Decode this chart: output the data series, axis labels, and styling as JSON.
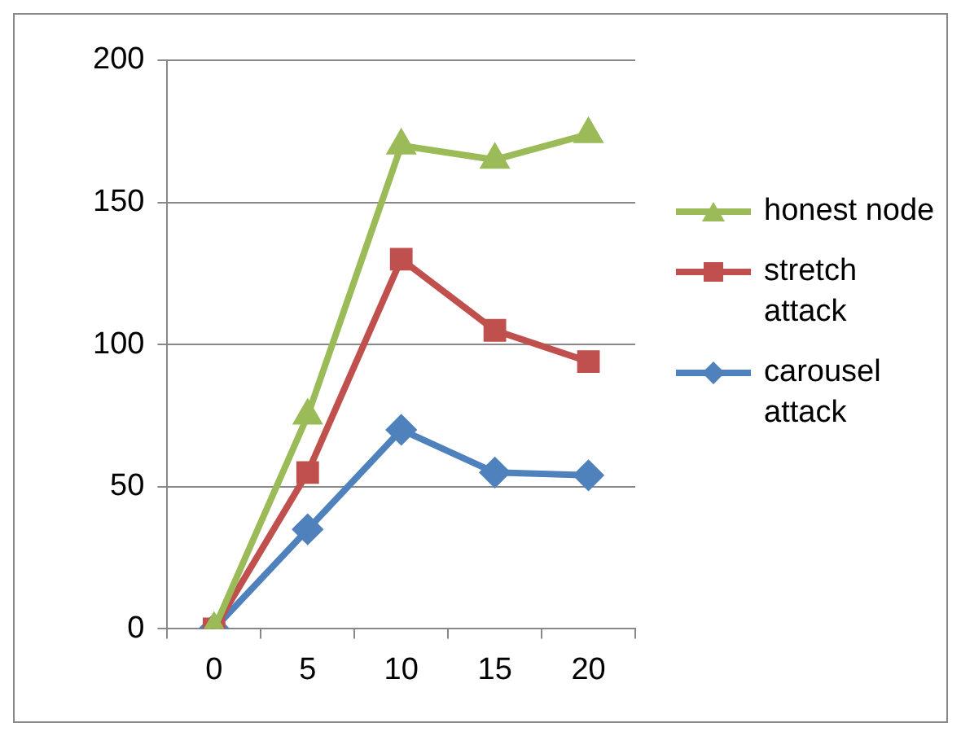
{
  "chart_data": {
    "type": "line",
    "categories": [
      "0",
      "5",
      "10",
      "15",
      "20"
    ],
    "series": [
      {
        "name": "honest node",
        "color": "#9bbb59",
        "marker": "triangle",
        "values": [
          0,
          75,
          170,
          165,
          174
        ]
      },
      {
        "name": "stretch attack",
        "color": "#c0504d",
        "marker": "square",
        "values": [
          0,
          55,
          130,
          105,
          94
        ]
      },
      {
        "name": "carousel attack",
        "color": "#4f81bd",
        "marker": "diamond",
        "values": [
          0,
          35,
          70,
          55,
          54
        ]
      }
    ],
    "ylim": [
      0,
      200
    ],
    "yticks": [
      0,
      50,
      100,
      150,
      200
    ],
    "grid": "y",
    "legend": "right"
  }
}
